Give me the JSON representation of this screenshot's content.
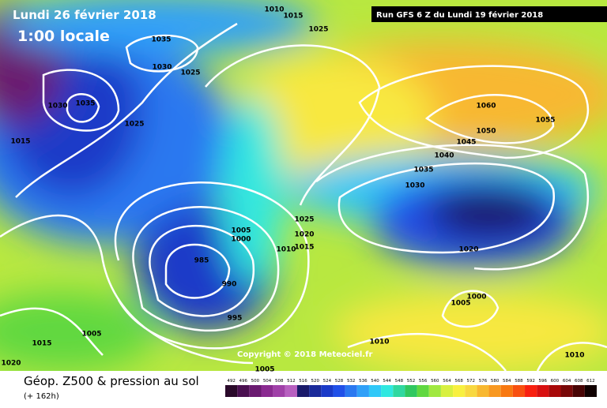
{
  "header": {
    "date": "Lundi 26 février 2018",
    "time": "1:00 locale",
    "run": "Run GFS 6 Z du Lundi 19 février 2018"
  },
  "isobar_labels": [
    "1010",
    "1015",
    "1025",
    "1035",
    "1030",
    "1025",
    "1030",
    "1035",
    "1025",
    "1015",
    "1060",
    "1050",
    "1055",
    "1045",
    "1040",
    "1035",
    "1030",
    "1025",
    "1005",
    "1000",
    "1020",
    "1015",
    "1010",
    "985",
    "990",
    "995",
    "1020",
    "1005",
    "1000",
    "1005",
    "1015",
    "1010",
    "1020",
    "1005",
    "1010"
  ],
  "copyright": "Copyright © 2018 Meteociel.fr",
  "footer": {
    "title": "Géop. Z500 & pression au sol",
    "subtitle": "(+ 162h)"
  },
  "legend": {
    "values": [
      492,
      496,
      500,
      504,
      508,
      512,
      516,
      520,
      524,
      528,
      532,
      536,
      540,
      544,
      548,
      552,
      556,
      560,
      564,
      568,
      572,
      576,
      580,
      584,
      588,
      592,
      596,
      600,
      604,
      608,
      612
    ],
    "colors": [
      "#2a0a2a",
      "#4a1050",
      "#6a1a70",
      "#8a2a90",
      "#a040a8",
      "#b860c0",
      "#1a1a6a",
      "#1a2a9a",
      "#1a3ac8",
      "#2050e8",
      "#2a78f0",
      "#30a0f8",
      "#30c8f8",
      "#30e8e0",
      "#30d8a0",
      "#30c860",
      "#60d840",
      "#a0e840",
      "#d8f040",
      "#f8f040",
      "#f8d840",
      "#f8b830",
      "#f89820",
      "#f87810",
      "#f85010",
      "#f82010",
      "#d81010",
      "#a80808",
      "#780808",
      "#480404",
      "#100000"
    ]
  }
}
